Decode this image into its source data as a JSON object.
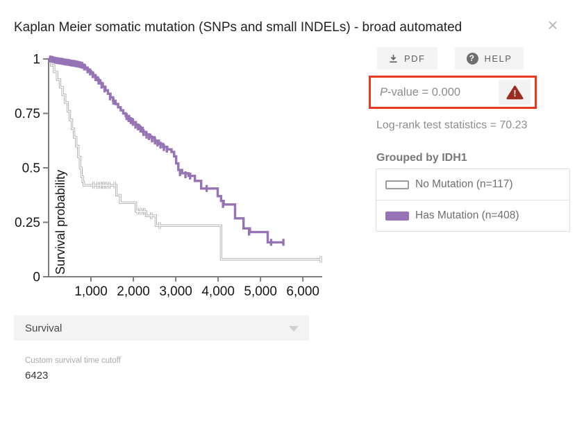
{
  "header": {
    "title": "Kaplan Meier somatic mutation (SNPs and small INDELs) - broad automated",
    "close_glyph": "×"
  },
  "toolbar": {
    "pdf_label": "PDF",
    "help_label": "HELP",
    "help_glyph": "?",
    "warning_glyph": "!",
    "accent_red": "#e8391f",
    "warning_red": "#9c2b22"
  },
  "stats": {
    "p_italic": "P",
    "p_rest": "-value = 0.000",
    "log_rank": "Log-rank test statistics = 70.23"
  },
  "grouping": {
    "heading": "Grouped by IDH1",
    "groups": [
      {
        "label": "No Mutation (n=117)",
        "color": "#a6a6a6",
        "fill": "#ffffff"
      },
      {
        "label": "Has Mutation (n=408)",
        "color": "#9673b4",
        "fill": "#9673b4"
      }
    ]
  },
  "controls": {
    "dropdown_value": "Survival",
    "cutoff_label": "Custom survival time cutoff",
    "cutoff_value": "6423"
  },
  "chart_data": {
    "type": "line",
    "subtype": "kaplan-meier-step",
    "title": "",
    "xlabel": "",
    "ylabel": "Survival probability",
    "xlim": [
      0,
      6550
    ],
    "ylim": [
      0,
      1
    ],
    "grid": false,
    "legend_position": "right-panel",
    "x_ticks": [
      {
        "v": 1000,
        "label": "1,000"
      },
      {
        "v": 2000,
        "label": "2,000"
      },
      {
        "v": 3000,
        "label": "3,000"
      },
      {
        "v": 4000,
        "label": "4,000"
      },
      {
        "v": 5000,
        "label": "5,000"
      },
      {
        "v": 6000,
        "label": "6,000"
      }
    ],
    "y_ticks": [
      {
        "v": 0,
        "label": "0"
      },
      {
        "v": 0.25,
        "label": "0.25"
      },
      {
        "v": 0.5,
        "label": "0.5"
      },
      {
        "v": 0.75,
        "label": "0.75"
      },
      {
        "v": 1,
        "label": "1"
      }
    ],
    "series": [
      {
        "name": "No Mutation (n=117)",
        "color": "#a6a6a6",
        "core": "#ffffff",
        "end_t": 6423,
        "steps": [
          [
            0,
            1
          ],
          [
            60,
            0.97
          ],
          [
            130,
            0.94
          ],
          [
            200,
            0.905
          ],
          [
            270,
            0.87
          ],
          [
            330,
            0.835
          ],
          [
            390,
            0.8
          ],
          [
            450,
            0.76
          ],
          [
            500,
            0.72
          ],
          [
            550,
            0.68
          ],
          [
            600,
            0.64
          ],
          [
            650,
            0.6
          ],
          [
            700,
            0.55
          ],
          [
            740,
            0.5
          ],
          [
            775,
            0.46
          ],
          [
            805,
            0.435
          ],
          [
            830,
            0.42
          ],
          [
            1600,
            0.375
          ],
          [
            1690,
            0.34
          ],
          [
            2060,
            0.3
          ],
          [
            2300,
            0.28
          ],
          [
            2530,
            0.235
          ],
          [
            4070,
            0.08
          ]
        ],
        "censors": [
          [
            1060,
            0.42
          ],
          [
            1160,
            0.42
          ],
          [
            1230,
            0.42
          ],
          [
            1290,
            0.42
          ],
          [
            1355,
            0.42
          ],
          [
            1430,
            0.42
          ],
          [
            1560,
            0.42
          ],
          [
            2100,
            0.3
          ],
          [
            2180,
            0.3
          ],
          [
            2255,
            0.3
          ],
          [
            2420,
            0.28
          ],
          [
            2620,
            0.235
          ],
          [
            6423,
            0.08
          ]
        ]
      },
      {
        "name": "Has Mutation (n=408)",
        "color": "#9673b4",
        "end_t": 5540,
        "steps": [
          [
            0,
            1
          ],
          [
            150,
            0.995
          ],
          [
            300,
            0.99
          ],
          [
            450,
            0.985
          ],
          [
            600,
            0.98
          ],
          [
            720,
            0.975
          ],
          [
            800,
            0.97
          ],
          [
            860,
            0.96
          ],
          [
            900,
            0.952
          ],
          [
            950,
            0.944
          ],
          [
            1000,
            0.935
          ],
          [
            1050,
            0.926
          ],
          [
            1100,
            0.916
          ],
          [
            1160,
            0.902
          ],
          [
            1220,
            0.888
          ],
          [
            1280,
            0.872
          ],
          [
            1340,
            0.856
          ],
          [
            1400,
            0.84
          ],
          [
            1460,
            0.824
          ],
          [
            1520,
            0.808
          ],
          [
            1580,
            0.793
          ],
          [
            1640,
            0.778
          ],
          [
            1700,
            0.764
          ],
          [
            1760,
            0.75
          ],
          [
            1820,
            0.738
          ],
          [
            1900,
            0.724
          ],
          [
            1980,
            0.71
          ],
          [
            2060,
            0.695
          ],
          [
            2140,
            0.683
          ],
          [
            2220,
            0.665
          ],
          [
            2300,
            0.652
          ],
          [
            2400,
            0.64
          ],
          [
            2500,
            0.625
          ],
          [
            2600,
            0.61
          ],
          [
            2700,
            0.596
          ],
          [
            2800,
            0.585
          ],
          [
            2900,
            0.573
          ],
          [
            2960,
            0.553
          ],
          [
            3010,
            0.52
          ],
          [
            3060,
            0.49
          ],
          [
            3150,
            0.475
          ],
          [
            3300,
            0.463
          ],
          [
            3450,
            0.44
          ],
          [
            3600,
            0.405
          ],
          [
            3990,
            0.37
          ],
          [
            4070,
            0.348
          ],
          [
            4130,
            0.332
          ],
          [
            4400,
            0.268
          ],
          [
            4600,
            0.222
          ],
          [
            4750,
            0.205
          ],
          [
            5170,
            0.158
          ]
        ],
        "censors": [
          [
            40,
            1
          ],
          [
            90,
            0.998
          ],
          [
            140,
            0.995
          ],
          [
            190,
            0.993
          ],
          [
            240,
            0.991
          ],
          [
            290,
            0.99
          ],
          [
            340,
            0.988
          ],
          [
            390,
            0.986
          ],
          [
            440,
            0.985
          ],
          [
            490,
            0.983
          ],
          [
            540,
            0.981
          ],
          [
            590,
            0.98
          ],
          [
            640,
            0.978
          ],
          [
            690,
            0.976
          ],
          [
            740,
            0.974
          ],
          [
            790,
            0.971
          ],
          [
            840,
            0.963
          ],
          [
            920,
            0.95
          ],
          [
            980,
            0.94
          ],
          [
            1040,
            0.928
          ],
          [
            1110,
            0.914
          ],
          [
            1180,
            0.898
          ],
          [
            1250,
            0.88
          ],
          [
            1320,
            0.862
          ],
          [
            1450,
            0.826
          ],
          [
            1530,
            0.806
          ],
          [
            1840,
            0.735
          ],
          [
            1890,
            0.726
          ],
          [
            1940,
            0.717
          ],
          [
            1990,
            0.709
          ],
          [
            2050,
            0.696
          ],
          [
            2110,
            0.688
          ],
          [
            2170,
            0.678
          ],
          [
            2240,
            0.662
          ],
          [
            2310,
            0.65
          ],
          [
            2370,
            0.643
          ],
          [
            2440,
            0.633
          ],
          [
            2510,
            0.623
          ],
          [
            2570,
            0.614
          ],
          [
            2640,
            0.604
          ],
          [
            2720,
            0.593
          ],
          [
            2790,
            0.586
          ],
          [
            3100,
            0.478
          ],
          [
            3230,
            0.468
          ],
          [
            3340,
            0.462
          ],
          [
            3730,
            0.405
          ],
          [
            4115,
            0.332
          ],
          [
            4730,
            0.205
          ],
          [
            5250,
            0.158
          ],
          [
            5540,
            0.158
          ]
        ]
      }
    ]
  }
}
